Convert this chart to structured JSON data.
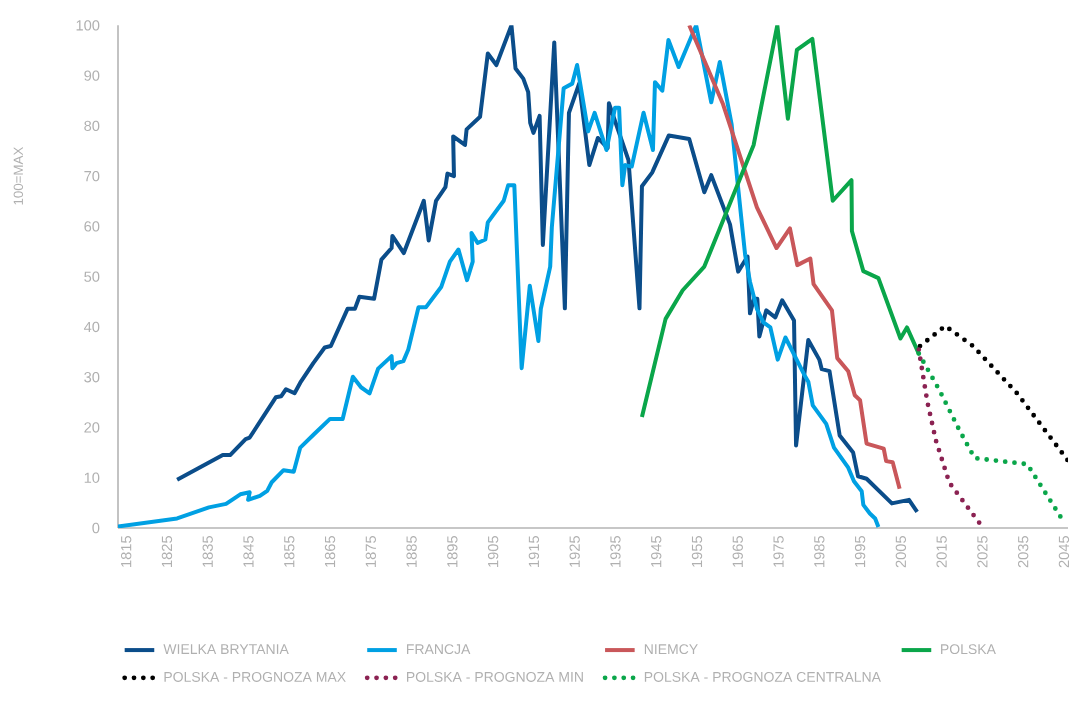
{
  "chart_data": {
    "type": "line",
    "ylabel": "100=MAX",
    "xlim": [
      1813,
      2046
    ],
    "ylim": [
      0,
      100
    ],
    "xticks": [
      1815,
      1825,
      1835,
      1845,
      1855,
      1865,
      1875,
      1885,
      1895,
      1905,
      1915,
      1925,
      1935,
      1945,
      1955,
      1965,
      1975,
      1985,
      1995,
      2005,
      2015,
      2025,
      2035,
      2045
    ],
    "yticks": [
      0,
      10,
      20,
      30,
      40,
      50,
      60,
      70,
      80,
      90,
      100
    ],
    "legend": "bottom",
    "marker": "none",
    "grid": false,
    "series": [
      {
        "name": "WIELKA BRYTANIA",
        "color": "#0b4d8a",
        "line_style": "solid",
        "x": [
          1827.5,
          1838.7,
          1840.5,
          1844.3,
          1845.3,
          1851.7,
          1853.0,
          1854.2,
          1856.3,
          1857.7,
          1860.9,
          1863.7,
          1865.2,
          1869.3,
          1871.1,
          1872.2,
          1875.8,
          1877.6,
          1880.1,
          1880.3,
          1883.1,
          1888.0,
          1889.2,
          1891.0,
          1893.3,
          1893.8,
          1895.4,
          1895.2,
          1898.1,
          1898.5,
          1901.8,
          1903.7,
          1905.8,
          1909.5,
          1910.5,
          1912.4,
          1913.6,
          1914.1,
          1914.9,
          1916.4,
          1917.2,
          1920.0,
          1922.6,
          1923.6,
          1926.1,
          1928.6,
          1930.7,
          1933.1,
          1933.4,
          1938.2,
          1940.9,
          1941.5,
          1944.0,
          1948.1,
          1953.1,
          1956.8,
          1958.5,
          1963.1,
          1965.1,
          1967.4,
          1968.0,
          1969.0,
          1969.8,
          1970.3,
          1972.0,
          1974.2,
          1975.9,
          1978.8,
          1979.3,
          1982.3,
          1985.0,
          1985.6,
          1987.5,
          1990.0,
          1993.3,
          1994.5,
          1996.6,
          2002.8,
          2007.0,
          2009.0
        ],
        "values": [
          9.6,
          14.5,
          14.5,
          17.7,
          18.0,
          26.0,
          26.2,
          27.6,
          26.8,
          28.9,
          32.8,
          35.9,
          36.2,
          43.6,
          43.6,
          46.0,
          45.6,
          53.4,
          55.7,
          58.1,
          54.7,
          65.1,
          57.2,
          65.1,
          67.8,
          70.5,
          70.0,
          77.9,
          76.2,
          79.3,
          81.8,
          94.4,
          92.1,
          100,
          91.4,
          89.4,
          86.7,
          80.6,
          78.6,
          82.0,
          56.3,
          96.6,
          43.7,
          82.6,
          88.4,
          72.2,
          77.6,
          75.6,
          84.5,
          73.2,
          43.7,
          68.0,
          70.7,
          78.1,
          77.4,
          66.8,
          70.2,
          60.4,
          51.0,
          54.0,
          42.7,
          45.6,
          45.6,
          38.1,
          43.3,
          41.9,
          45.3,
          41.3,
          16.4,
          37.4,
          33.5,
          31.6,
          31.2,
          18.4,
          15.0,
          10.3,
          9.8,
          4.9,
          5.6,
          3.2
        ]
      },
      {
        "name": "FRANCJA",
        "color": "#00a0e3",
        "line_style": "solid",
        "x": [
          1813.0,
          1827.5,
          1835.3,
          1839.5,
          1843.0,
          1845.3,
          1844.9,
          1847.8,
          1849.6,
          1850.7,
          1853.6,
          1856.1,
          1857.7,
          1861.0,
          1865.0,
          1868.1,
          1870.6,
          1872.6,
          1874.7,
          1876.8,
          1880.1,
          1880.3,
          1881.3,
          1883.0,
          1884.2,
          1886.7,
          1888.5,
          1892.3,
          1894.4,
          1896.5,
          1898.6,
          1900.0,
          1899.7,
          1901.2,
          1903.1,
          1903.7,
          1907.6,
          1908.7,
          1910.2,
          1912.0,
          1914.0,
          1916.1,
          1916.7,
          1919.0,
          1919.4,
          1922.3,
          1924.4,
          1925.6,
          1928.3,
          1929.9,
          1932.8,
          1934.9,
          1935.9,
          1936.7,
          1937.4,
          1939.0,
          1941.9,
          1944.2,
          1944.7,
          1946.5,
          1948.0,
          1950.5,
          1954.8,
          1958.5,
          1960.6,
          1963.5,
          1964.9,
          1966.8,
          1968.0,
          1969.7,
          1971.3,
          1973.0,
          1974.8,
          1976.7,
          1981.3,
          1982.3,
          1983.4,
          1986.7,
          1988.6,
          1992.1,
          1993.5,
          1995.4,
          1995.8,
          1997.4,
          1998.7,
          1999.5
        ],
        "values": [
          0.3,
          1.9,
          4.1,
          4.8,
          6.7,
          7.1,
          5.6,
          6.4,
          7.4,
          9.1,
          11.5,
          11.2,
          16.0,
          18.6,
          21.7,
          21.7,
          30.1,
          28.0,
          26.8,
          31.7,
          34.2,
          31.8,
          32.8,
          33.2,
          35.5,
          43.9,
          43.9,
          48.0,
          53.0,
          55.4,
          49.3,
          53.0,
          58.7,
          56.7,
          57.4,
          60.8,
          65.1,
          68.2,
          68.2,
          31.8,
          48.2,
          37.2,
          43.6,
          52.0,
          59.8,
          87.5,
          88.4,
          92.1,
          78.9,
          82.6,
          75.2,
          83.6,
          83.6,
          68.2,
          72.2,
          71.9,
          82.6,
          75.2,
          88.7,
          87.0,
          97.1,
          91.7,
          100,
          84.7,
          92.7,
          80.3,
          69.2,
          54.4,
          49.0,
          43.6,
          40.9,
          39.9,
          33.5,
          37.9,
          30.5,
          29.1,
          24.4,
          20.7,
          16.0,
          12.0,
          9.3,
          7.3,
          4.6,
          2.9,
          1.9,
          0.2
        ]
      },
      {
        "name": "NIEMCY",
        "color": "#c9575a",
        "line_style": "solid",
        "x": [
          1953.1,
          1961.4,
          1969.7,
          1974.5,
          1977.8,
          1979.6,
          1982.8,
          1983.6,
          1988.1,
          1989.4,
          1992.1,
          1993.7,
          1995.0,
          1996.6,
          2000.8,
          2001.4,
          2003.0,
          2004.7
        ],
        "values": [
          100,
          84.3,
          63.8,
          55.7,
          59.6,
          52.3,
          53.6,
          48.5,
          43.3,
          33.8,
          31.2,
          26.4,
          25.4,
          16.8,
          15.8,
          13.3,
          13.1,
          7.8
        ]
      },
      {
        "name": "POLSKA",
        "color": "#0aa64a",
        "line_style": "solid",
        "x": [
          1941.5,
          1947.3,
          1951.5,
          1956.8,
          1968.9,
          1974.7,
          1977.3,
          1979.5,
          1983.3,
          1988.3,
          1992.9,
          1993.0,
          1995.8,
          1999.5,
          2004.9,
          2006.5,
          2009.4
        ],
        "values": [
          22.1,
          41.6,
          47.3,
          52.0,
          76.2,
          100,
          81.4,
          95.1,
          97.3,
          65.1,
          69.2,
          59.1,
          51.1,
          49.7,
          37.7,
          39.9,
          34.7
        ]
      },
      {
        "name": "POLSKA - PROGNOZA MAX",
        "color": "#000000",
        "line_style": "dotted",
        "x": [
          2009.7,
          2015.9,
          2022.7,
          2033.5,
          2045.9
        ],
        "values": [
          36.2,
          40.2,
          36.2,
          26.8,
          13.5
        ]
      },
      {
        "name": "POLSKA - PROGNOZA MIN",
        "color": "#8b2252",
        "line_style": "dotted",
        "x": [
          2009.4,
          2011.5,
          2013.6,
          2016.9,
          2025.2
        ],
        "values": [
          35.5,
          25.1,
          17.4,
          9.0,
          0
        ]
      },
      {
        "name": "POLSKA - PROGNOZA CENTRALNA",
        "color": "#0aa64a",
        "line_style": "dotted",
        "x": [
          2009.4,
          2014.4,
          2019.4,
          2023.1,
          2036.0,
          2044.2
        ],
        "values": [
          34.7,
          27.5,
          19.4,
          13.9,
          12.7,
          2.2
        ]
      }
    ]
  }
}
